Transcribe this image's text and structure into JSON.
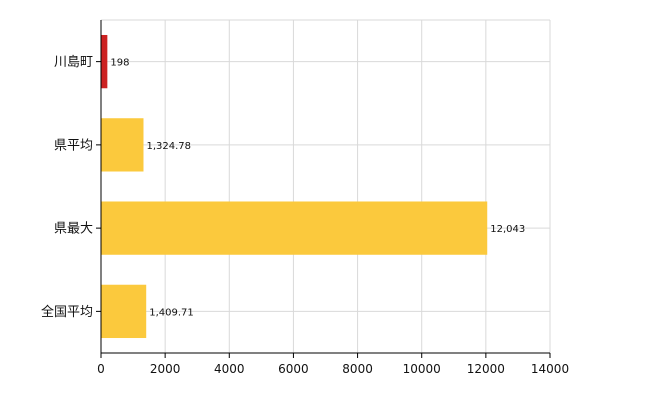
{
  "chart_data": {
    "type": "bar",
    "orientation": "horizontal",
    "title": "",
    "xlabel": "",
    "ylabel": "",
    "categories": [
      "川島町",
      "県平均",
      "県最大",
      "全国平均"
    ],
    "values": [
      198,
      1324.78,
      12043,
      1409.71
    ],
    "value_labels": [
      "198",
      "1,324.78",
      "12,043",
      "1,409.71"
    ],
    "xlim": [
      0,
      14000
    ],
    "xticks": [
      0,
      2000,
      4000,
      6000,
      8000,
      10000,
      12000,
      14000
    ],
    "xtick_labels": [
      "0",
      "2000",
      "4000",
      "6000",
      "8000",
      "10000",
      "12000",
      "14000"
    ],
    "grid": true,
    "legend": "none",
    "colors": {
      "highlight": "#cc2222",
      "default": "#fbc93d",
      "grid": "#d9d9d9",
      "axis": "#000000"
    },
    "bar_colors": [
      "highlight",
      "default",
      "default",
      "default"
    ]
  }
}
